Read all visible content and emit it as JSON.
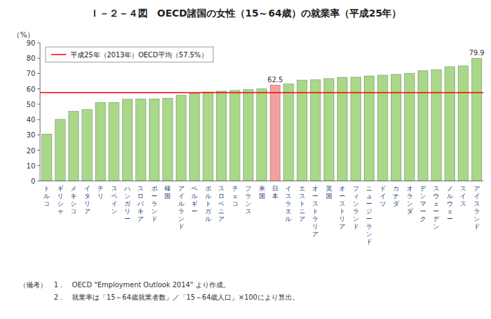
{
  "chart_data": {
    "type": "bar",
    "title": "Ｉ－２－４図　OECD諸国の女性（15～64歳）の就業率（平成25年）",
    "ylabel": "（%）",
    "categories": [
      "トルコ",
      "ギリシャ",
      "メキシコ",
      "イタリア",
      "チリ",
      "スペイン",
      "ハンガリー",
      "スロバキア",
      "ポーランド",
      "韓国",
      "アイルランド",
      "ベルギー",
      "ポルトガル",
      "スロベニア",
      "チェコ",
      "フランス",
      "米国",
      "日本",
      "イスラエル",
      "エストニア",
      "オーストラリア",
      "英国",
      "オーストリア",
      "フィンランド",
      "ニュージーランド",
      "ドイツ",
      "カナダ",
      "オランダ",
      "デンマーク",
      "スウェーデン",
      "ノルウェー",
      "スイス",
      "アイスランド"
    ],
    "values": [
      30.5,
      40.1,
      45.4,
      46.5,
      51.1,
      51.1,
      53.2,
      53.4,
      53.4,
      53.9,
      55.9,
      57.0,
      58.0,
      58.5,
      59.0,
      59.5,
      60.0,
      62.5,
      63.2,
      65.7,
      65.9,
      66.7,
      67.5,
      67.6,
      68.4,
      68.9,
      69.4,
      70.1,
      71.9,
      72.5,
      74.4,
      75.0,
      79.9
    ],
    "value_labels": [
      null,
      null,
      null,
      null,
      null,
      null,
      null,
      null,
      null,
      null,
      null,
      null,
      null,
      null,
      null,
      null,
      null,
      "62.5",
      null,
      null,
      null,
      null,
      null,
      null,
      null,
      null,
      null,
      null,
      null,
      null,
      null,
      null,
      "79.9"
    ],
    "colors": [
      "#a8d888",
      "#a8d888",
      "#a8d888",
      "#a8d888",
      "#a8d888",
      "#a8d888",
      "#a8d888",
      "#a8d888",
      "#a8d888",
      "#a8d888",
      "#a8d888",
      "#a8d888",
      "#a8d888",
      "#a8d888",
      "#a8d888",
      "#a8d888",
      "#a8d888",
      "#f5a0a0",
      "#a8d888",
      "#a8d888",
      "#a8d888",
      "#a8d888",
      "#a8d888",
      "#a8d888",
      "#a8d888",
      "#a8d888",
      "#a8d888",
      "#a8d888",
      "#a8d888",
      "#a8d888",
      "#a8d888",
      "#a8d888",
      "#a8d888"
    ],
    "average": {
      "name": "平成25年（2013年）OECD平均（57.5%）",
      "value": 57.5,
      "color": "red"
    },
    "legend": "upper left",
    "ylim": [
      0,
      90
    ],
    "yticks": [
      0,
      10,
      20,
      30,
      40,
      50,
      60,
      70,
      80,
      90
    ],
    "grid": false,
    "notes": [
      "（備考）　1．　OECD \"Employment Outlook 2014\" より作成。",
      "　　　　　2．　就業率は「15～64歳就業者数」／「15～64歳人口」×100により算出。"
    ]
  }
}
